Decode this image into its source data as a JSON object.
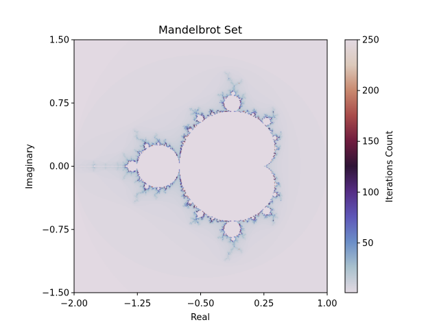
{
  "chart_data": {
    "type": "heatmap",
    "title": "Mandelbrot Set",
    "xlabel": "Real",
    "ylabel": "Imaginary",
    "xlim": [
      -2.0,
      1.0
    ],
    "ylim": [
      -1.5,
      1.5
    ],
    "x_ticks": [
      -2.0,
      -1.25,
      -0.5,
      0.25,
      1.0
    ],
    "x_tick_labels": [
      "−2.00",
      "−1.25",
      "−0.50",
      "0.25",
      "1.00"
    ],
    "y_ticks": [
      -1.5,
      -0.75,
      0.0,
      0.75,
      1.5
    ],
    "y_tick_labels": [
      "−1.50",
      "−0.75",
      "0.00",
      "0.75",
      "1.50"
    ],
    "colorbar": {
      "label": "Iterations Count",
      "min": 1,
      "max": 250,
      "ticks": [
        50,
        100,
        150,
        200,
        250
      ],
      "tick_labels": [
        "50",
        "100",
        "150",
        "200",
        "250"
      ],
      "colormap": "twilight",
      "colormap_stops": [
        "#e2d9e2",
        "#a9c1cd",
        "#6b8ec7",
        "#5e57b8",
        "#552d84",
        "#2f1436",
        "#6f1c3e",
        "#a84b4a",
        "#c9896f",
        "#dcc9bb",
        "#e2d9e2"
      ]
    },
    "max_iterations": 250,
    "grid": false
  }
}
